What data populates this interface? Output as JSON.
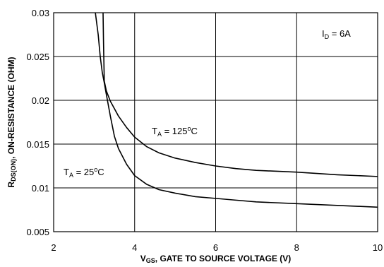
{
  "chart_data": {
    "type": "line",
    "title": "",
    "xlabel": {
      "sym": "V",
      "sub": "GS",
      "text": ", GATE TO SOURCE VOLTAGE (V)"
    },
    "ylabel": {
      "sym": "R",
      "sub": "DS(ON)",
      "text": ", ON-RESISTANCE (OHM)"
    },
    "xlim": [
      2,
      10
    ],
    "ylim": [
      0.005,
      0.03
    ],
    "x_ticks": [
      2,
      4,
      6,
      8,
      10
    ],
    "x_tick_labels": [
      "2",
      "4",
      "6",
      "8",
      "10"
    ],
    "y_ticks": [
      0.005,
      0.01,
      0.015,
      0.02,
      0.025,
      0.03
    ],
    "y_tick_labels": [
      "0.005",
      "0.01",
      "0.015",
      "0.02",
      "0.025",
      "0.03"
    ],
    "grid": true,
    "series": [
      {
        "label_parts": {
          "sym": "T",
          "sub": "A",
          "eq": " = 25",
          "deg": "o",
          "unit": "C"
        },
        "x": [
          3.03,
          3.1,
          3.15,
          3.2,
          3.25,
          3.3,
          3.4,
          3.5,
          3.6,
          3.8,
          4.0,
          4.3,
          4.6,
          5.0,
          5.5,
          6.0,
          6.5,
          7.0,
          8.0,
          9.0,
          10.0
        ],
        "y": [
          0.03,
          0.0275,
          0.025,
          0.0232,
          0.022,
          0.0207,
          0.0182,
          0.0159,
          0.0145,
          0.0127,
          0.0114,
          0.0104,
          0.0098,
          0.0094,
          0.009,
          0.0088,
          0.0086,
          0.0084,
          0.0082,
          0.008,
          0.0078
        ]
      },
      {
        "label_parts": {
          "sym": "T",
          "sub": "A",
          "eq": " = 125",
          "deg": "o",
          "unit": "C"
        },
        "x": [
          3.22,
          3.23,
          3.24,
          3.25,
          3.3,
          3.4,
          3.6,
          3.8,
          4.0,
          4.3,
          4.6,
          5.0,
          5.5,
          6.0,
          6.5,
          7.0,
          8.0,
          9.0,
          10.0
        ],
        "y": [
          0.03,
          0.027,
          0.0245,
          0.0222,
          0.0211,
          0.0199,
          0.0182,
          0.0169,
          0.0158,
          0.0147,
          0.014,
          0.0134,
          0.0129,
          0.0125,
          0.0122,
          0.012,
          0.0118,
          0.0115,
          0.0113
        ]
      }
    ],
    "annotation": {
      "sym": "I",
      "sub": "D",
      "text": " = 6A"
    }
  }
}
